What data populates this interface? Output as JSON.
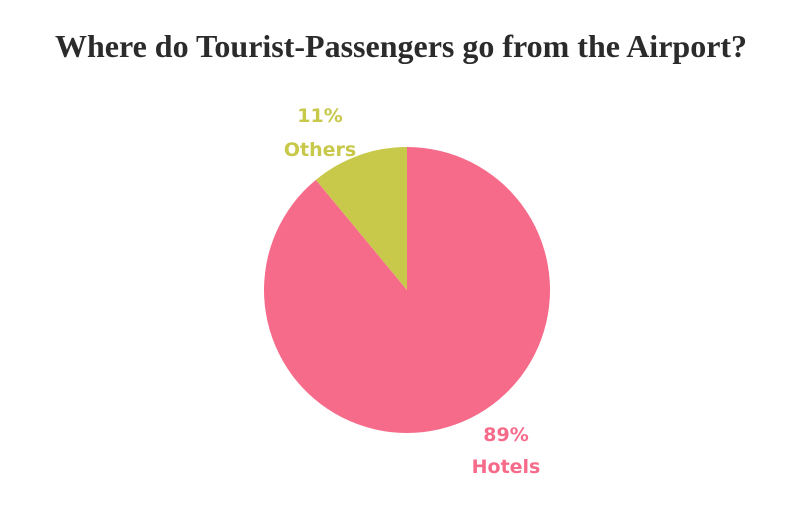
{
  "chart_data": {
    "type": "pie",
    "title": "Where do Tourist-Passengers go from the Airport?",
    "slices": [
      {
        "label": "Hotels",
        "value": 89,
        "value_label": "89%",
        "color": "#f76b8a"
      },
      {
        "label": "Others",
        "value": 11,
        "value_label": "11%",
        "color": "#c8c84a"
      }
    ],
    "start_angle_deg": 0,
    "direction": "clockwise",
    "legend": "none"
  }
}
